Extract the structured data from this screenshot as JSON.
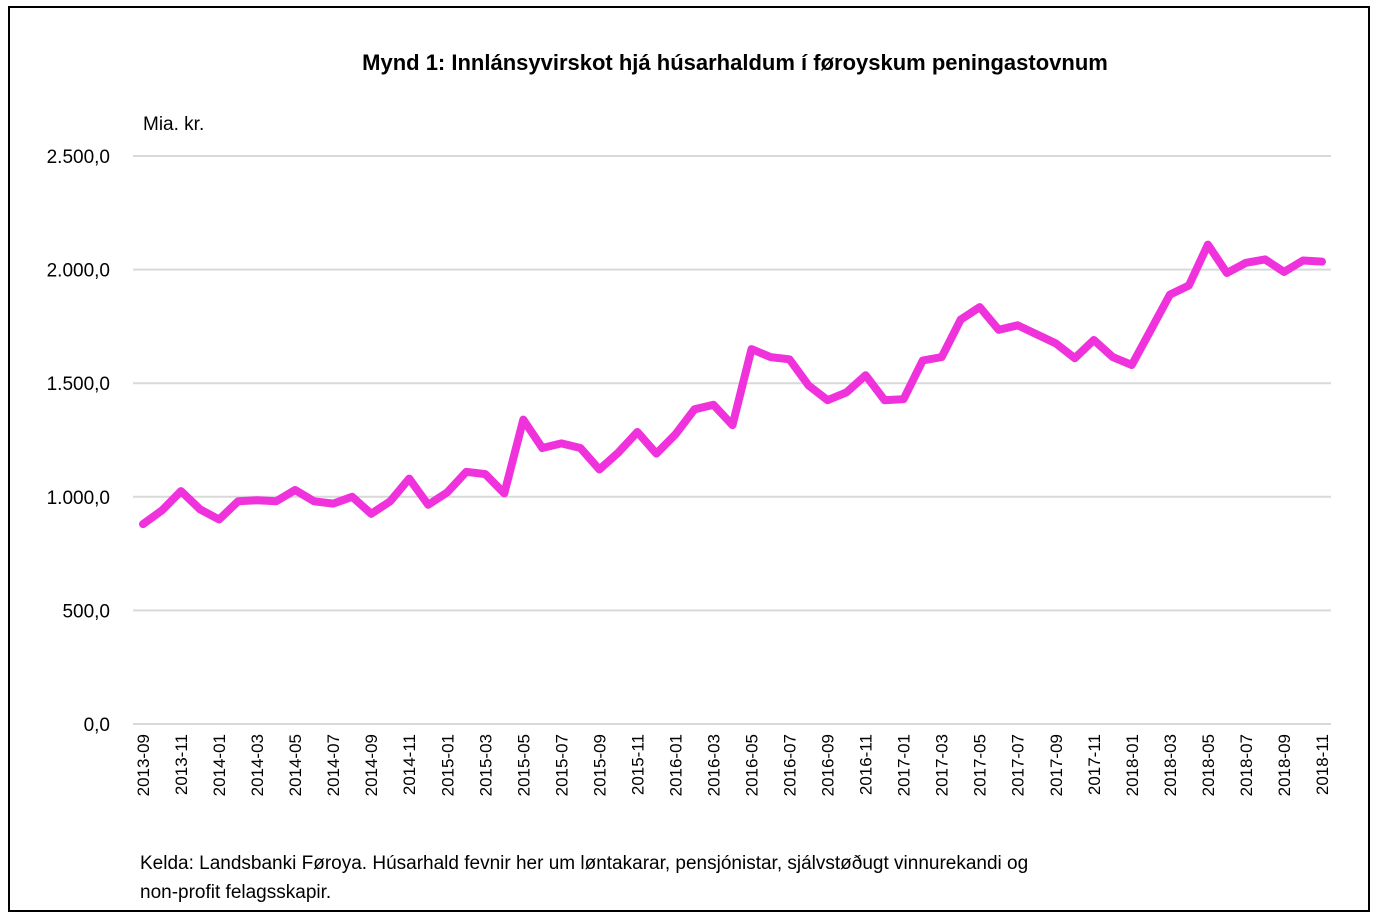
{
  "chart_data": {
    "type": "line",
    "title": "Mynd 1: Innlánsyvirskot hjá húsarhaldum í føroyskum peningastovnum",
    "unit_label": "Mia. kr.",
    "ylim": [
      0,
      2500
    ],
    "yticks": [
      0,
      500,
      1000,
      1500,
      2000,
      2500
    ],
    "ytick_labels": [
      "0,0",
      "500,0",
      "1.000,0",
      "1.500,0",
      "2.000,0",
      "2.500,0"
    ],
    "grid": true,
    "legend": "none",
    "x": [
      "2013-09",
      "2013-10",
      "2013-11",
      "2013-12",
      "2014-01",
      "2014-02",
      "2014-03",
      "2014-04",
      "2014-05",
      "2014-06",
      "2014-07",
      "2014-08",
      "2014-09",
      "2014-10",
      "2014-11",
      "2014-12",
      "2015-01",
      "2015-02",
      "2015-03",
      "2015-04",
      "2015-05",
      "2015-06",
      "2015-07",
      "2015-08",
      "2015-09",
      "2015-10",
      "2015-11",
      "2015-12",
      "2016-01",
      "2016-02",
      "2016-03",
      "2016-04",
      "2016-05",
      "2016-06",
      "2016-07",
      "2016-08",
      "2016-09",
      "2016-10",
      "2016-11",
      "2016-12",
      "2017-01",
      "2017-02",
      "2017-03",
      "2017-04",
      "2017-05",
      "2017-06",
      "2017-07",
      "2017-08",
      "2017-09",
      "2017-10",
      "2017-11",
      "2017-12",
      "2018-01",
      "2018-02",
      "2018-03",
      "2018-04",
      "2018-05",
      "2018-06",
      "2018-07",
      "2018-08",
      "2018-09",
      "2018-10",
      "2018-11"
    ],
    "x_tick_labels": [
      "2013-09",
      "2013-11",
      "2014-01",
      "2014-03",
      "2014-05",
      "2014-07",
      "2014-09",
      "2014-11",
      "2015-01",
      "2015-03",
      "2015-05",
      "2015-07",
      "2015-09",
      "2015-11",
      "2016-01",
      "2016-03",
      "2016-05",
      "2016-07",
      "2016-09",
      "2016-11",
      "2017-01",
      "2017-03",
      "2017-05",
      "2017-07",
      "2017-09",
      "2017-11",
      "2018-01",
      "2018-03",
      "2018-05",
      "2018-07",
      "2018-09",
      "2018-11"
    ],
    "series": [
      {
        "color": "#f032dc",
        "values": [
          880,
          940,
          1025,
          945,
          900,
          980,
          985,
          980,
          1030,
          980,
          970,
          1000,
          925,
          980,
          1080,
          965,
          1020,
          1110,
          1100,
          1015,
          1340,
          1215,
          1235,
          1215,
          1120,
          1195,
          1285,
          1190,
          1275,
          1385,
          1405,
          1315,
          1650,
          1615,
          1605,
          1490,
          1425,
          1460,
          1535,
          1425,
          1430,
          1600,
          1615,
          1780,
          1835,
          1735,
          1755,
          1715,
          1675,
          1610,
          1690,
          1615,
          1580,
          1735,
          1890,
          1930,
          2110,
          1985,
          2030,
          2045,
          1990,
          2040,
          2035
        ]
      }
    ]
  },
  "footnote": {
    "line1": "Kelda: Landsbanki Føroya. Húsarhald fevnir her um løntakarar, pensjónistar, sjálvstøðugt vinnurekandi og",
    "line2": "non-profit felagsskapir."
  }
}
